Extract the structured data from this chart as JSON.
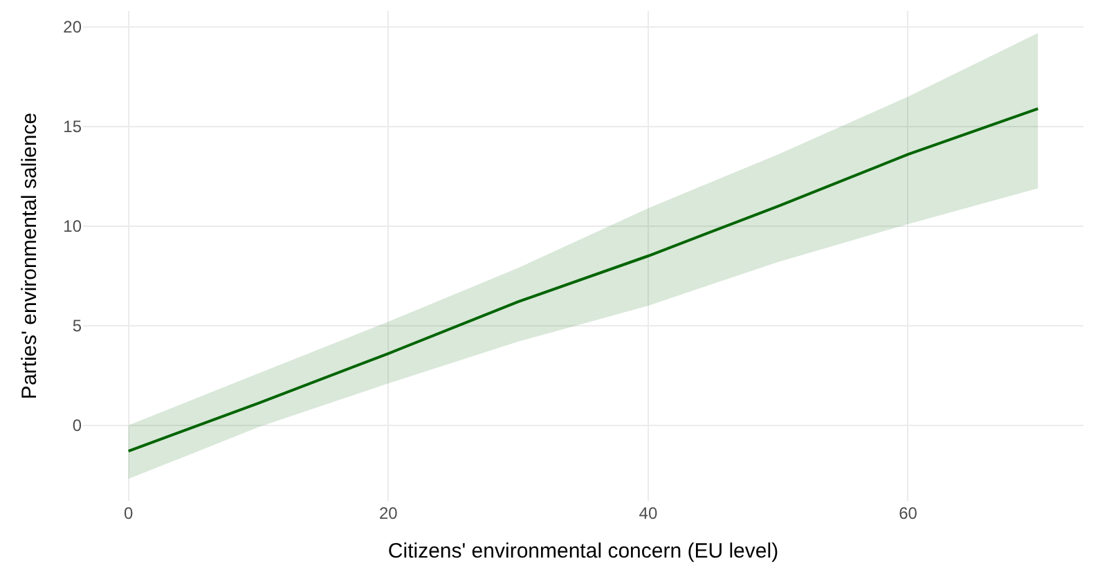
{
  "chart_data": {
    "type": "line",
    "xlabel": "Citizens' environmental concern (EU level)",
    "ylabel": "Parties' environmental salience",
    "x": [
      0,
      10,
      20,
      30,
      40,
      50,
      60,
      70
    ],
    "series": [
      {
        "color": "#006400",
        "values": [
          -1.3,
          1.1,
          3.6,
          6.2,
          8.5,
          11.0,
          13.6,
          15.9
        ],
        "lower": [
          -2.7,
          -0.1,
          2.1,
          4.2,
          6.0,
          8.2,
          10.1,
          11.9
        ],
        "upper": [
          0.0,
          2.6,
          5.2,
          7.9,
          10.9,
          13.6,
          16.5,
          19.7
        ]
      }
    ],
    "xlim": [
      -3.5,
      73.5
    ],
    "ylim": [
      -3.8,
      20.8
    ],
    "xticks": [
      0,
      20,
      40,
      60
    ],
    "yticks": [
      0,
      5,
      10,
      15,
      20
    ],
    "grid": true,
    "marker": "none",
    "line_style": "solid"
  }
}
